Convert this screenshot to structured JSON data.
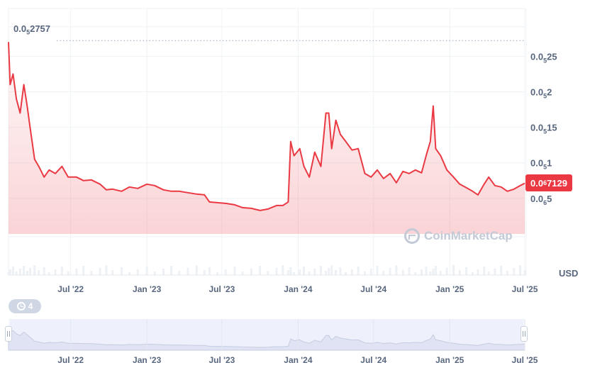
{
  "chart_data": {
    "type": "line",
    "currency": "USD",
    "max_label": {
      "prefix": "0.0",
      "sub": "5",
      "digits": "2757"
    },
    "current_price": {
      "prefix": "0.0",
      "sub": "6",
      "digits": "7129"
    },
    "y_ticks": [
      {
        "prefix": "0.0",
        "sub": "5",
        "digits": "25",
        "value": 2.5e-06
      },
      {
        "prefix": "0.0",
        "sub": "5",
        "digits": "2",
        "value": 2e-06
      },
      {
        "prefix": "0.0",
        "sub": "5",
        "digits": "15",
        "value": 1.5e-06
      },
      {
        "prefix": "0.0",
        "sub": "5",
        "digits": "1",
        "value": 1e-06
      },
      {
        "prefix": "0.0",
        "sub": "6",
        "digits": "5",
        "value": 5e-07
      }
    ],
    "x_ticks": [
      {
        "label": "Jul '22",
        "date": "2022-07-01"
      },
      {
        "label": "Jan '23",
        "date": "2023-01-01"
      },
      {
        "label": "Jul '23",
        "date": "2023-07-01"
      },
      {
        "label": "Jan '24",
        "date": "2024-01-01"
      },
      {
        "label": "Jul '24",
        "date": "2024-07-01"
      },
      {
        "label": "Jan '25",
        "date": "2025-01-01"
      },
      {
        "label": "Jul '25",
        "date": "2025-07-01"
      }
    ],
    "x_range": [
      "2022-02-01",
      "2025-07-01"
    ],
    "ylim": [
      0,
      2.95e-06
    ],
    "series": [
      {
        "points": [
          [
            "2022-02-01",
            2.7e-06
          ],
          [
            "2022-02-05",
            2.1e-06
          ],
          [
            "2022-02-12",
            2.25e-06
          ],
          [
            "2022-02-20",
            1.9e-06
          ],
          [
            "2022-03-01",
            1.7e-06
          ],
          [
            "2022-03-10",
            2.1e-06
          ],
          [
            "2022-03-18",
            1.8e-06
          ],
          [
            "2022-03-25",
            1.5e-06
          ],
          [
            "2022-04-05",
            1.05e-06
          ],
          [
            "2022-04-15",
            9.5e-07
          ],
          [
            "2022-04-28",
            8e-07
          ],
          [
            "2022-05-10",
            9e-07
          ],
          [
            "2022-05-25",
            8.5e-07
          ],
          [
            "2022-06-10",
            9.5e-07
          ],
          [
            "2022-06-25",
            8e-07
          ],
          [
            "2022-07-15",
            8e-07
          ],
          [
            "2022-08-01",
            7.5e-07
          ],
          [
            "2022-08-20",
            7.6e-07
          ],
          [
            "2022-09-10",
            7e-07
          ],
          [
            "2022-09-25",
            6.2e-07
          ],
          [
            "2022-10-10",
            6.3e-07
          ],
          [
            "2022-11-01",
            6e-07
          ],
          [
            "2022-11-20",
            6.6e-07
          ],
          [
            "2022-12-10",
            6.4e-07
          ],
          [
            "2023-01-01",
            7e-07
          ],
          [
            "2023-01-20",
            6.8e-07
          ],
          [
            "2023-02-10",
            6.2e-07
          ],
          [
            "2023-03-01",
            6e-07
          ],
          [
            "2023-03-20",
            6e-07
          ],
          [
            "2023-04-10",
            5.8e-07
          ],
          [
            "2023-05-01",
            5.6e-07
          ],
          [
            "2023-05-20",
            5.5e-07
          ],
          [
            "2023-06-01",
            4.5e-07
          ],
          [
            "2023-06-20",
            4.4e-07
          ],
          [
            "2023-07-10",
            4.3e-07
          ],
          [
            "2023-08-01",
            4.1e-07
          ],
          [
            "2023-08-20",
            3.7e-07
          ],
          [
            "2023-09-10",
            3.6e-07
          ],
          [
            "2023-10-01",
            3.3e-07
          ],
          [
            "2023-10-20",
            3.5e-07
          ],
          [
            "2023-11-10",
            4e-07
          ],
          [
            "2023-11-25",
            4e-07
          ],
          [
            "2023-12-08",
            4.5e-07
          ],
          [
            "2023-12-14",
            1.3e-06
          ],
          [
            "2023-12-22",
            1.1e-06
          ],
          [
            "2024-01-05",
            1.2e-06
          ],
          [
            "2024-01-15",
            9.5e-07
          ],
          [
            "2024-01-28",
            8e-07
          ],
          [
            "2024-02-10",
            1.15e-06
          ],
          [
            "2024-02-25",
            9.5e-07
          ],
          [
            "2024-03-08",
            1.7e-06
          ],
          [
            "2024-03-15",
            1.7e-06
          ],
          [
            "2024-03-22",
            1.2e-06
          ],
          [
            "2024-04-01",
            1.6e-06
          ],
          [
            "2024-04-12",
            1.4e-06
          ],
          [
            "2024-04-25",
            1.3e-06
          ],
          [
            "2024-05-10",
            1.18e-06
          ],
          [
            "2024-05-25",
            1.2e-06
          ],
          [
            "2024-06-10",
            8.5e-07
          ],
          [
            "2024-06-25",
            8e-07
          ],
          [
            "2024-07-10",
            9e-07
          ],
          [
            "2024-07-25",
            7.8e-07
          ],
          [
            "2024-08-10",
            8.5e-07
          ],
          [
            "2024-08-25",
            7.2e-07
          ],
          [
            "2024-09-10",
            8.8e-07
          ],
          [
            "2024-09-25",
            8.5e-07
          ],
          [
            "2024-10-10",
            9e-07
          ],
          [
            "2024-10-25",
            8.6e-07
          ],
          [
            "2024-11-05",
            1.1e-06
          ],
          [
            "2024-11-15",
            1.3e-06
          ],
          [
            "2024-11-22",
            1.8e-06
          ],
          [
            "2024-11-28",
            1.2e-06
          ],
          [
            "2024-12-10",
            1.1e-06
          ],
          [
            "2024-12-25",
            9e-07
          ],
          [
            "2025-01-10",
            8e-07
          ],
          [
            "2025-01-25",
            7e-07
          ],
          [
            "2025-02-10",
            6.5e-07
          ],
          [
            "2025-02-25",
            6e-07
          ],
          [
            "2025-03-10",
            5.5e-07
          ],
          [
            "2025-03-25",
            7e-07
          ],
          [
            "2025-04-05",
            8e-07
          ],
          [
            "2025-04-20",
            6.8e-07
          ],
          [
            "2025-05-05",
            6.6e-07
          ],
          [
            "2025-05-20",
            6e-07
          ],
          [
            "2025-06-05",
            6.3e-07
          ],
          [
            "2025-06-20",
            6.8e-07
          ],
          [
            "2025-07-01",
            7.129e-07
          ]
        ]
      }
    ],
    "grid": true,
    "line_color": "#ea3943"
  },
  "navigator": {
    "x_ticks": [
      "Jul '22",
      "Jan '23",
      "Jul '23",
      "Jan '24",
      "Jul '24",
      "Jan '25",
      "Jul '25"
    ]
  },
  "events_badge": {
    "count": "4"
  },
  "watermark": {
    "text": "CoinMarketCap"
  }
}
